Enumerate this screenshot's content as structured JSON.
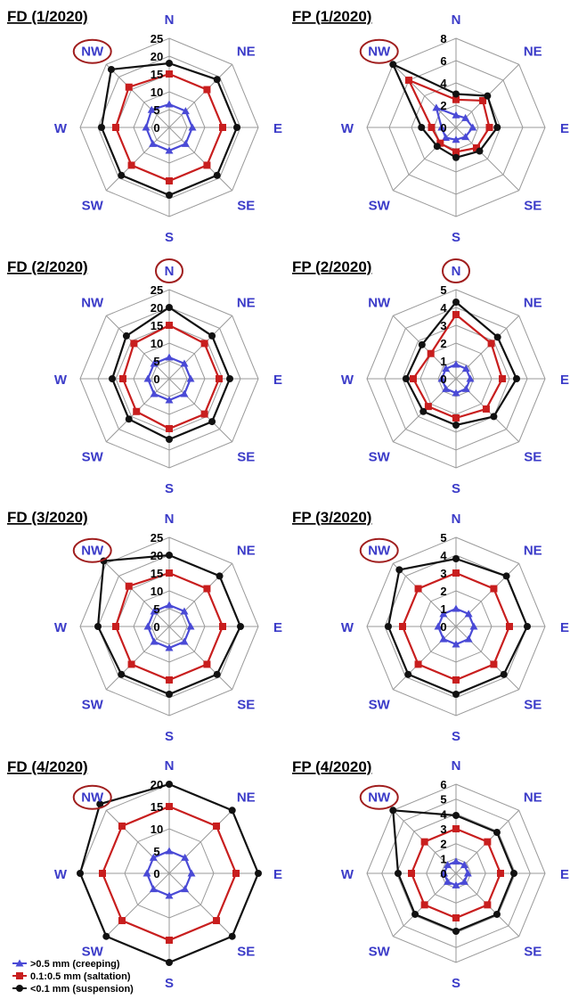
{
  "directions": [
    "N",
    "NE",
    "E",
    "SE",
    "S",
    "SW",
    "W",
    "NW"
  ],
  "colors": {
    "creeping": "#4a4ad6",
    "saltation": "#c81e1e",
    "suspension": "#111111",
    "grid": "#9a9a9a",
    "highlight": "#a01e1e",
    "direction_label": "#3b3bc8"
  },
  "legend": [
    {
      "label": ">0.5 mm (creeping)",
      "marker": "triangle",
      "color": "#4a4ad6"
    },
    {
      "label": "0.1:0.5 mm (saltation)",
      "marker": "square",
      "color": "#c81e1e"
    },
    {
      "label": "<0.1 mm (suspension)",
      "marker": "circle",
      "color": "#111111"
    }
  ],
  "chart_data": [
    {
      "type": "radar",
      "title": "FD (1/2020)",
      "ticks": [
        "0",
        "5",
        "10",
        "15",
        "20",
        "25"
      ],
      "rmax": 25,
      "highlight": "NW",
      "series": [
        {
          "name": ">0.5 mm (creeping)",
          "values": [
            6.5,
            6.5,
            6.5,
            6.5,
            6.5,
            6.5,
            6.5,
            7
          ]
        },
        {
          "name": "0.1:0.5 mm (saltation)",
          "values": [
            15,
            15,
            15,
            15,
            15,
            15,
            15,
            16
          ]
        },
        {
          "name": "<0.1 mm (suspension)",
          "values": [
            18,
            19,
            19,
            19,
            19,
            19,
            19,
            23
          ]
        }
      ]
    },
    {
      "type": "radar",
      "title": "FP (1/2020)",
      "ticks": [
        "0",
        "2",
        "4",
        "6",
        "8"
      ],
      "rmax": 8,
      "highlight": "NW",
      "series": [
        {
          "name": ">0.5 mm (creeping)",
          "values": [
            1.1,
            1.2,
            1.5,
            1.2,
            1.1,
            1.3,
            1.3,
            2.5
          ]
        },
        {
          "name": "0.1:0.5 mm (saltation)",
          "values": [
            2.5,
            3.4,
            3.0,
            2.6,
            2.2,
            2.0,
            2.2,
            6.0
          ]
        },
        {
          "name": "<0.1 mm (suspension)",
          "values": [
            3.0,
            4.0,
            3.7,
            3.0,
            2.7,
            2.4,
            3.1,
            8.0
          ]
        }
      ]
    },
    {
      "type": "radar",
      "title": "FD (2/2020)",
      "ticks": [
        "0",
        "5",
        "10",
        "15",
        "20",
        "25"
      ],
      "rmax": 25,
      "highlight": "N",
      "series": [
        {
          "name": ">0.5 mm (creeping)",
          "values": [
            6,
            6,
            6,
            6,
            6,
            6,
            6,
            6
          ]
        },
        {
          "name": "0.1:0.5 mm (saltation)",
          "values": [
            15,
            14,
            14,
            14,
            14,
            13,
            13,
            14
          ]
        },
        {
          "name": "<0.1 mm (suspension)",
          "values": [
            20,
            17,
            17,
            17,
            17,
            16,
            16,
            17
          ]
        }
      ]
    },
    {
      "type": "radar",
      "title": "FP (2/2020)",
      "ticks": [
        "0",
        "1",
        "2",
        "3",
        "4",
        "5"
      ],
      "rmax": 5,
      "highlight": "N",
      "series": [
        {
          "name": ">0.5 mm (creeping)",
          "values": [
            0.8,
            0.8,
            0.8,
            0.8,
            0.8,
            0.8,
            0.8,
            0.8
          ]
        },
        {
          "name": "0.1:0.5 mm (saltation)",
          "values": [
            3.6,
            2.8,
            2.6,
            2.4,
            2.2,
            2.2,
            2.4,
            2.0
          ]
        },
        {
          "name": "<0.1 mm (suspension)",
          "values": [
            4.3,
            3.3,
            3.4,
            3.0,
            2.6,
            2.6,
            2.8,
            2.7
          ]
        }
      ]
    },
    {
      "type": "radar",
      "title": "FD (3/2020)",
      "ticks": [
        "0",
        "5",
        "10",
        "15",
        "20",
        "25"
      ],
      "rmax": 25,
      "highlight": "NW",
      "series": [
        {
          "name": ">0.5 mm (creeping)",
          "values": [
            6,
            6,
            6,
            6,
            6,
            6,
            6,
            6
          ]
        },
        {
          "name": "0.1:0.5 mm (saltation)",
          "values": [
            15,
            15,
            15,
            15,
            15,
            15,
            15,
            16
          ]
        },
        {
          "name": "<0.1 mm (suspension)",
          "values": [
            20,
            20,
            20,
            19,
            19,
            19,
            20,
            26
          ]
        }
      ]
    },
    {
      "type": "radar",
      "title": "FP (3/2020)",
      "ticks": [
        "0",
        "1",
        "2",
        "3",
        "4",
        "5"
      ],
      "rmax": 5,
      "highlight": "NW",
      "series": [
        {
          "name": ">0.5 mm (creeping)",
          "values": [
            1,
            1,
            1,
            1,
            1,
            1,
            1,
            1
          ]
        },
        {
          "name": "0.1:0.5 mm (saltation)",
          "values": [
            3,
            3,
            3,
            3,
            3,
            3,
            3,
            3
          ]
        },
        {
          "name": "<0.1 mm (suspension)",
          "values": [
            3.8,
            4,
            4,
            3.8,
            3.8,
            3.8,
            3.8,
            4.5
          ]
        }
      ]
    },
    {
      "type": "radar",
      "title": "FD (4/2020)",
      "ticks": [
        "0",
        "5",
        "10",
        "15",
        "20"
      ],
      "rmax": 20,
      "highlight": "NW",
      "series": [
        {
          "name": ">0.5 mm (creeping)",
          "values": [
            5,
            5,
            5,
            5,
            5,
            5,
            5,
            5
          ]
        },
        {
          "name": "0.1:0.5 mm (saltation)",
          "values": [
            15,
            15,
            15,
            15,
            15,
            15,
            15,
            15
          ]
        },
        {
          "name": "<0.1 mm (suspension)",
          "values": [
            20,
            20,
            20,
            20,
            20,
            20,
            20,
            22
          ]
        }
      ]
    },
    {
      "type": "radar",
      "title": "FP (4/2020)",
      "ticks": [
        "0",
        "1",
        "2",
        "3",
        "4",
        "5",
        "6"
      ],
      "rmax": 6,
      "highlight": "NW",
      "series": [
        {
          "name": ">0.5 mm (creeping)",
          "values": [
            0.8,
            0.8,
            0.8,
            0.8,
            0.8,
            0.8,
            0.8,
            0.8
          ]
        },
        {
          "name": "0.1:0.5 mm (saltation)",
          "values": [
            3,
            3,
            3,
            3,
            3,
            3,
            3,
            3
          ]
        },
        {
          "name": "<0.1 mm (suspension)",
          "values": [
            3.9,
            3.9,
            3.9,
            3.9,
            3.9,
            3.9,
            3.9,
            6
          ]
        }
      ]
    }
  ]
}
